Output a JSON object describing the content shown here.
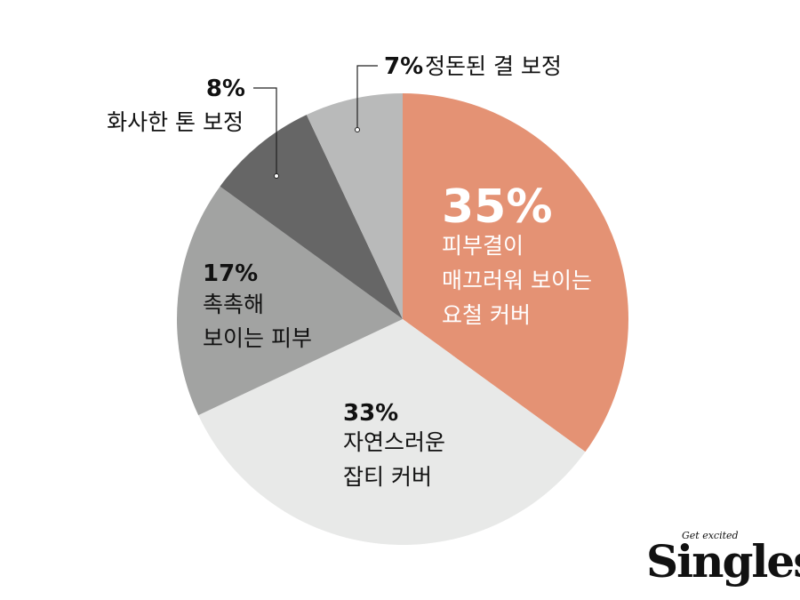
{
  "chart_data": {
    "type": "pie",
    "slices": [
      {
        "value": 35,
        "percent_label": "35%",
        "label_lines": [
          "피부결이",
          "매끄러워 보이는",
          "요철 커버"
        ],
        "color": "#e49274"
      },
      {
        "value": 33,
        "percent_label": "33%",
        "label_lines": [
          "자연스러운",
          "잡티 커버"
        ],
        "color": "#e8e9e8"
      },
      {
        "value": 17,
        "percent_label": "17%",
        "label_lines": [
          "촉촉해",
          "보이는 피부"
        ],
        "color": "#a2a3a2"
      },
      {
        "value": 8,
        "percent_label": "8%",
        "label_lines": [
          "화사한 톤 보정"
        ],
        "color": "#666666"
      },
      {
        "value": 7,
        "percent_label": "7%",
        "label_lines": [
          "정돈된 결 보정"
        ],
        "color": "#b9baba"
      }
    ],
    "start_angle": "12 o'clock",
    "direction": "clockwise",
    "legend": "none"
  },
  "brand": {
    "tagline": "Get excited",
    "name": "Singles"
  }
}
